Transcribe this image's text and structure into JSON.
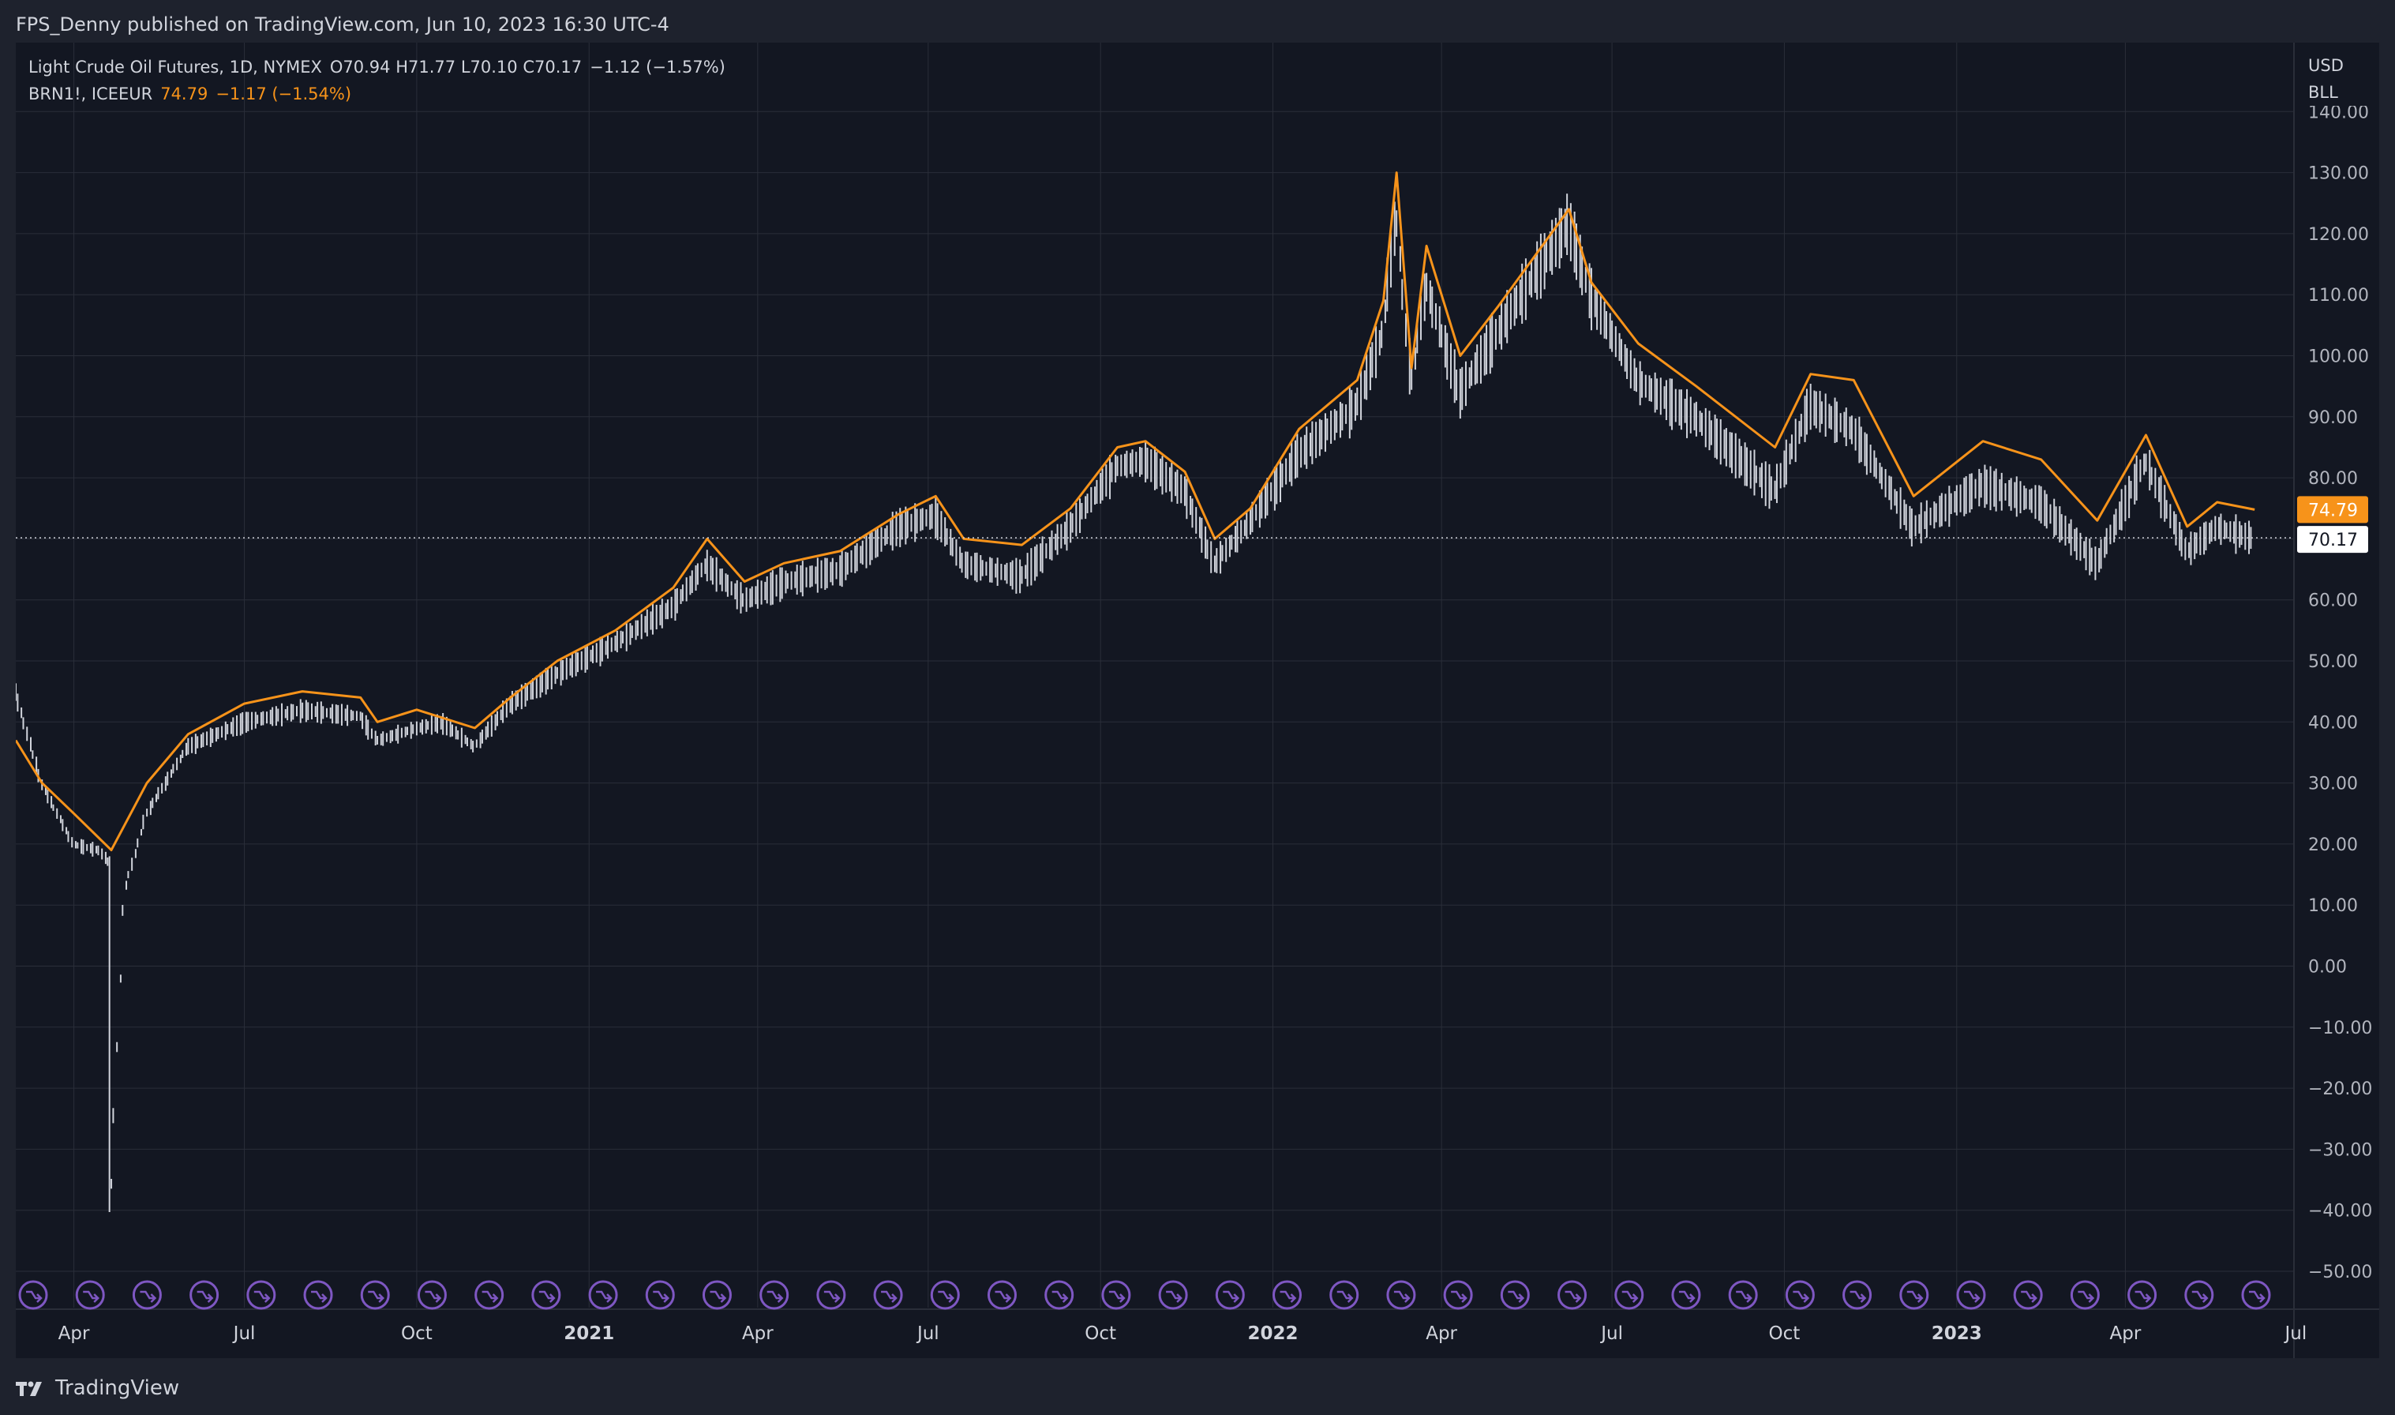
{
  "header": {
    "published_text": "FPS_Denny published on TradingView.com, Jun 10, 2023 16:30 UTC-4"
  },
  "legend": {
    "main_title": "Light Crude Oil Futures, 1D, NYMEX",
    "o_label": "O",
    "o_value": "70.94",
    "h_label": "H",
    "h_value": "71.77",
    "l_label": "L",
    "l_value": "70.10",
    "c_label": "C",
    "c_value": "70.17",
    "change": "−1.12 (−1.57%)",
    "compare_title": "BRN1!, ICEEUR",
    "compare_value": "74.79",
    "compare_change": "−1.17 (−1.54%)"
  },
  "axis_units": {
    "currency": "USD",
    "unit": "BLL"
  },
  "footer": {
    "brand": "TradingView"
  },
  "colors": {
    "background": "#131722",
    "frame": "#1e222d",
    "grid": "#2a2e39",
    "bars": "#d1d4dc",
    "brent": "#f7931a",
    "event": "#7e57c2",
    "text": "#d1d4dc"
  },
  "chart_data": {
    "type": "line",
    "title": "Light Crude Oil Futures, 1D, NYMEX vs BRN1!, ICEEUR",
    "xlabel": "",
    "ylabel": "USD",
    "ylim": [
      -55,
      142
    ],
    "y_ticks": [
      "140.00",
      "130.00",
      "120.00",
      "110.00",
      "100.00",
      "90.00",
      "80.00",
      "70.00",
      "60.00",
      "50.00",
      "40.00",
      "30.00",
      "20.00",
      "10.00",
      "0.00",
      "−10.00",
      "−20.00",
      "−30.00",
      "−40.00",
      "−50.00"
    ],
    "y_tick_values": [
      140,
      130,
      120,
      110,
      100,
      90,
      80,
      70,
      60,
      50,
      40,
      30,
      20,
      10,
      0,
      -10,
      -20,
      -30,
      -40,
      -50
    ],
    "x_range": [
      "2020-03-01",
      "2023-06-30"
    ],
    "x_ticks": [
      {
        "label": "Apr",
        "date": "2020-04-01",
        "bold": false
      },
      {
        "label": "Jul",
        "date": "2020-07-01",
        "bold": false
      },
      {
        "label": "Oct",
        "date": "2020-10-01",
        "bold": false
      },
      {
        "label": "2021",
        "date": "2021-01-01",
        "bold": true
      },
      {
        "label": "Apr",
        "date": "2021-04-01",
        "bold": false
      },
      {
        "label": "Jul",
        "date": "2021-07-01",
        "bold": false
      },
      {
        "label": "Oct",
        "date": "2021-10-01",
        "bold": false
      },
      {
        "label": "2022",
        "date": "2022-01-01",
        "bold": true
      },
      {
        "label": "Apr",
        "date": "2022-04-01",
        "bold": false
      },
      {
        "label": "Jul",
        "date": "2022-07-01",
        "bold": false
      },
      {
        "label": "Oct",
        "date": "2022-10-01",
        "bold": false
      },
      {
        "label": "2023",
        "date": "2023-01-01",
        "bold": true
      },
      {
        "label": "Apr",
        "date": "2023-04-01",
        "bold": false
      },
      {
        "label": "Jul",
        "date": "2023-07-01",
        "bold": false
      }
    ],
    "last_price_wti": 70.17,
    "last_price_wti_label": "70.17",
    "last_price_brent": 74.79,
    "last_price_brent_label": "74.79",
    "series": [
      {
        "name": "Light Crude Oil Futures (WTI) close",
        "style": "ohlc-bars",
        "x": [
          "2020-03-01",
          "2020-03-15",
          "2020-04-01",
          "2020-04-15",
          "2020-04-20",
          "2020-04-21",
          "2020-04-28",
          "2020-05-10",
          "2020-06-01",
          "2020-07-01",
          "2020-08-01",
          "2020-09-01",
          "2020-09-10",
          "2020-10-01",
          "2020-10-15",
          "2020-11-01",
          "2020-11-20",
          "2020-12-15",
          "2021-01-15",
          "2021-02-15",
          "2021-03-05",
          "2021-03-25",
          "2021-04-15",
          "2021-05-15",
          "2021-06-15",
          "2021-07-05",
          "2021-07-20",
          "2021-08-20",
          "2021-09-15",
          "2021-10-10",
          "2021-10-25",
          "2021-11-15",
          "2021-12-01",
          "2021-12-20",
          "2022-01-15",
          "2022-02-15",
          "2022-03-01",
          "2022-03-08",
          "2022-03-16",
          "2022-03-24",
          "2022-04-11",
          "2022-05-01",
          "2022-06-08",
          "2022-06-20",
          "2022-07-15",
          "2022-08-15",
          "2022-09-26",
          "2022-10-15",
          "2022-11-07",
          "2022-12-09",
          "2023-01-15",
          "2023-02-15",
          "2023-03-17",
          "2023-04-12",
          "2023-05-04",
          "2023-05-20",
          "2023-06-09"
        ],
        "values": [
          45,
          30,
          20,
          19,
          17,
          -37,
          12,
          25,
          36,
          40,
          42,
          41,
          37,
          39,
          40,
          36,
          43,
          48,
          53,
          59,
          66,
          60,
          63,
          65,
          72,
          74,
          66,
          64,
          72,
          82,
          83,
          78,
          66,
          73,
          84,
          92,
          104,
          124,
          95,
          112,
          94,
          104,
          122,
          110,
          96,
          90,
          78,
          92,
          88,
          72,
          79,
          76,
          66,
          83,
          68,
          72,
          70.17
        ]
      },
      {
        "name": "BRN1!, ICEEUR",
        "style": "line",
        "x": [
          "2020-03-01",
          "2020-03-15",
          "2020-04-01",
          "2020-04-21",
          "2020-05-10",
          "2020-06-01",
          "2020-07-01",
          "2020-08-01",
          "2020-09-01",
          "2020-09-10",
          "2020-10-01",
          "2020-11-01",
          "2020-11-20",
          "2020-12-15",
          "2021-01-15",
          "2021-02-15",
          "2021-03-05",
          "2021-03-25",
          "2021-04-15",
          "2021-05-15",
          "2021-06-15",
          "2021-07-05",
          "2021-07-20",
          "2021-08-20",
          "2021-09-15",
          "2021-10-10",
          "2021-10-25",
          "2021-11-15",
          "2021-12-01",
          "2021-12-20",
          "2022-01-15",
          "2022-02-15",
          "2022-03-01",
          "2022-03-08",
          "2022-03-16",
          "2022-03-24",
          "2022-04-11",
          "2022-05-01",
          "2022-06-08",
          "2022-06-20",
          "2022-07-15",
          "2022-08-15",
          "2022-09-26",
          "2022-10-15",
          "2022-11-07",
          "2022-12-09",
          "2023-01-15",
          "2023-02-15",
          "2023-03-17",
          "2023-04-12",
          "2023-05-04",
          "2023-05-20",
          "2023-06-09"
        ],
        "values": [
          37,
          30,
          25,
          19,
          30,
          38,
          43,
          45,
          44,
          40,
          42,
          39,
          44,
          50,
          55,
          62,
          70,
          63,
          66,
          68,
          74,
          77,
          70,
          69,
          75,
          85,
          86,
          81,
          70,
          75,
          88,
          96,
          109,
          130,
          98,
          118,
          100,
          108,
          124,
          112,
          102,
          95,
          85,
          97,
          96,
          77,
          86,
          83,
          73,
          87,
          72,
          76,
          74.79
        ]
      }
    ],
    "event_markers_count": 40
  }
}
